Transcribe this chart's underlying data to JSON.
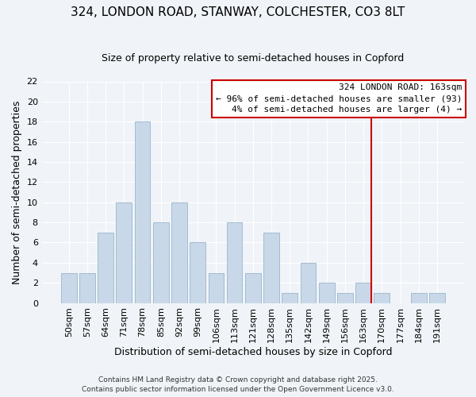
{
  "title": "324, LONDON ROAD, STANWAY, COLCHESTER, CO3 8LT",
  "subtitle": "Size of property relative to semi-detached houses in Copford",
  "xlabel": "Distribution of semi-detached houses by size in Copford",
  "ylabel": "Number of semi-detached properties",
  "bins": [
    "50sqm",
    "57sqm",
    "64sqm",
    "71sqm",
    "78sqm",
    "85sqm",
    "92sqm",
    "99sqm",
    "106sqm",
    "113sqm",
    "121sqm",
    "128sqm",
    "135sqm",
    "142sqm",
    "149sqm",
    "156sqm",
    "163sqm",
    "170sqm",
    "177sqm",
    "184sqm",
    "191sqm"
  ],
  "counts": [
    3,
    3,
    7,
    10,
    18,
    8,
    10,
    6,
    3,
    8,
    3,
    7,
    1,
    4,
    2,
    1,
    2,
    1,
    0,
    1,
    1
  ],
  "bar_color": "#c8d8e8",
  "bar_edge_color": "#9ab4cc",
  "highlight_bar_index": 16,
  "highlight_line_color": "#cc0000",
  "ylim": [
    0,
    22
  ],
  "yticks": [
    0,
    2,
    4,
    6,
    8,
    10,
    12,
    14,
    16,
    18,
    20,
    22
  ],
  "legend_title": "324 LONDON ROAD: 163sqm",
  "legend_line1": "← 96% of semi-detached houses are smaller (93)",
  "legend_line2": "4% of semi-detached houses are larger (4) →",
  "legend_box_color": "#cc0000",
  "footer1": "Contains HM Land Registry data © Crown copyright and database right 2025.",
  "footer2": "Contains public sector information licensed under the Open Government Licence v3.0.",
  "background_color": "#f0f4f8",
  "grid_color": "#ffffff",
  "title_fontsize": 11,
  "subtitle_fontsize": 9,
  "axis_label_fontsize": 9,
  "tick_fontsize": 8,
  "legend_fontsize": 8,
  "footer_fontsize": 6.5
}
